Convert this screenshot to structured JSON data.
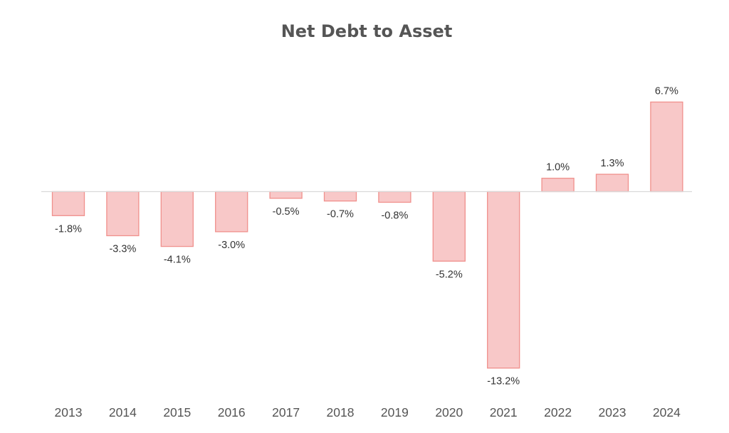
{
  "chart_data": {
    "type": "bar",
    "title": "Net Debt to Asset",
    "xlabel": "",
    "ylabel": "",
    "categories": [
      "2013",
      "2014",
      "2015",
      "2016",
      "2017",
      "2018",
      "2019",
      "2020",
      "2021",
      "2022",
      "2023",
      "2024"
    ],
    "values": [
      -1.8,
      -3.3,
      -4.1,
      -3.0,
      -0.5,
      -0.7,
      -0.8,
      -5.2,
      -13.2,
      1.0,
      1.3,
      6.7
    ],
    "data_labels": [
      "-1.8%",
      "-3.3%",
      "-4.1%",
      "-3.0%",
      "-0.5%",
      "-0.7%",
      "-0.8%",
      "-5.2%",
      "-13.2%",
      "1.0%",
      "1.3%",
      "6.7%"
    ],
    "value_unit": "%",
    "ylim": [
      -13.2,
      6.7
    ],
    "grid": false,
    "legend": "none",
    "colors": {
      "bar_fill": "#f8c8c8",
      "bar_stroke": "#f0908c",
      "zero_line": "#d9d9d9",
      "title": "#555555",
      "tick_label": "#555555",
      "data_label": "#333333"
    }
  }
}
